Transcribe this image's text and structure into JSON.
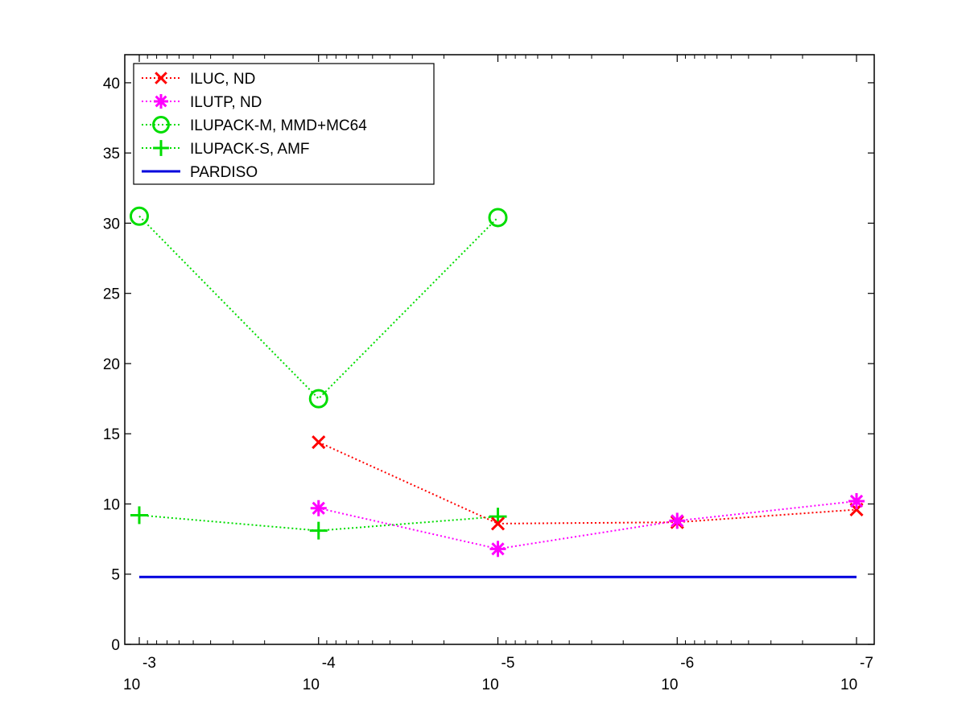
{
  "chart_data": {
    "type": "line",
    "x_scale": "log-reversed",
    "x": [
      0.001,
      0.0001,
      1e-05,
      1e-06,
      1e-07
    ],
    "xlim": [
      0.001,
      1e-07
    ],
    "x_tick_labels": [
      {
        "base": "10",
        "exp": "-3"
      },
      {
        "base": "10",
        "exp": "-4"
      },
      {
        "base": "10",
        "exp": "-5"
      },
      {
        "base": "10",
        "exp": "-6"
      },
      {
        "base": "10",
        "exp": "-7"
      }
    ],
    "ylim": [
      0,
      42
    ],
    "y_ticks": [
      0,
      5,
      10,
      15,
      20,
      25,
      30,
      35,
      40
    ],
    "y_tick_labels": [
      "0",
      "5",
      "10",
      "15",
      "20",
      "25",
      "30",
      "35",
      "40"
    ],
    "grid": false,
    "legend_position": "top-left",
    "series": [
      {
        "name": "ILUC,  ND",
        "color": "#ff0000",
        "marker": "x",
        "line": "dotted",
        "values": [
          null,
          14.4,
          8.6,
          8.7,
          9.6
        ]
      },
      {
        "name": "ILUTP,  ND",
        "color": "#ff00ff",
        "marker": "asterisk",
        "line": "dotted",
        "values": [
          null,
          9.7,
          6.8,
          8.8,
          10.2
        ]
      },
      {
        "name": "ILUPACK-M, MMD+MC64",
        "color": "#00dd00",
        "marker": "circle",
        "line": "dotted",
        "values": [
          30.5,
          17.5,
          30.4,
          null,
          null
        ]
      },
      {
        "name": "ILUPACK-S, AMF",
        "color": "#00dd00",
        "marker": "plus",
        "line": "dotted",
        "values": [
          9.2,
          8.1,
          9.1,
          null,
          null
        ]
      },
      {
        "name": "PARDISO",
        "color": "#0000dd",
        "marker": "none",
        "line": "solid",
        "values": [
          4.8,
          4.8,
          4.8,
          4.8,
          4.8
        ]
      }
    ]
  }
}
